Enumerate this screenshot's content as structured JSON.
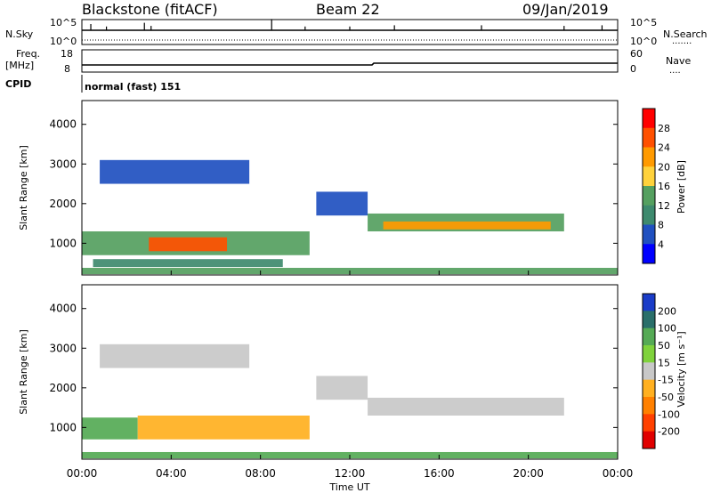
{
  "header": {
    "station": "Blackstone (fitACF)",
    "beam": "Beam 22",
    "date": "09/Jan/2019"
  },
  "status": {
    "nsky_label": "N.Sky",
    "nsearch_label": "N.Search",
    "nsearch_key": "·······",
    "freq_label_1": "Freq.",
    "freq_label_2": "[MHz]",
    "nave_label": "Nave",
    "nave_key": "····",
    "cpid_label": "CPID",
    "cpid_text": "normal (fast) 151",
    "noise_ticks_left": [
      "10^5",
      "10^0"
    ],
    "noise_ticks_right": [
      "10^5",
      "10^0"
    ],
    "freq_ticks": [
      "18",
      "8"
    ],
    "nave_ticks": [
      "60",
      "0"
    ]
  },
  "chart_data": [
    {
      "type": "heatmap",
      "name": "power",
      "ylabel": "Slant Range [km]",
      "ylim": [
        200,
        4600
      ],
      "yticks": [
        1000,
        2000,
        3000,
        4000
      ],
      "xlim_hours": [
        0,
        24
      ],
      "colorbar": {
        "label": "Power [dB]",
        "ticks": [
          4,
          8,
          12,
          16,
          20,
          24,
          28
        ],
        "colors": [
          "#0000ff",
          "#2050c0",
          "#3e8a6e",
          "#55a060",
          "#ffd23c",
          "#ff9a00",
          "#ff5000",
          "#ff0000"
        ]
      },
      "regions": [
        {
          "t0": 0.0,
          "t1": 10.2,
          "r0": 700,
          "r1": 1300,
          "level": 12
        },
        {
          "t0": 3.0,
          "t1": 6.5,
          "r0": 800,
          "r1": 1150,
          "level": 26
        },
        {
          "t0": 0.5,
          "t1": 9.0,
          "r0": 400,
          "r1": 600,
          "level": 10
        },
        {
          "t0": 12.8,
          "t1": 21.6,
          "r0": 1300,
          "r1": 1750,
          "level": 14
        },
        {
          "t0": 13.5,
          "t1": 21.0,
          "r0": 1350,
          "r1": 1550,
          "level": 22
        },
        {
          "t0": 0.8,
          "t1": 7.5,
          "r0": 2500,
          "r1": 3100,
          "level": 6
        },
        {
          "t0": 10.5,
          "t1": 12.8,
          "r0": 1700,
          "r1": 2300,
          "level": 6
        },
        {
          "t0": 0.0,
          "t1": 24.0,
          "r0": 220,
          "r1": 380,
          "level": 12
        }
      ]
    },
    {
      "type": "heatmap",
      "name": "velocity",
      "ylabel": "Slant Range [km]",
      "ylim": [
        200,
        4600
      ],
      "yticks": [
        1000,
        2000,
        3000,
        4000
      ],
      "xlim_hours": [
        0,
        24
      ],
      "colorbar": {
        "label": "Velocity [m s⁻¹]",
        "ticks": [
          "200",
          "100",
          "50",
          "15",
          "-15",
          "-50",
          "-100",
          "-200"
        ],
        "colors": [
          "#1a3cc8",
          "#2a6f6a",
          "#55aa55",
          "#7fd23c",
          "#c8c8c8",
          "#ffb020",
          "#ff8000",
          "#ff4000",
          "#e00000"
        ]
      },
      "regions": [
        {
          "t0": 0.0,
          "t1": 2.5,
          "r0": 700,
          "r1": 1250,
          "level": 40
        },
        {
          "t0": 2.5,
          "t1": 10.2,
          "r0": 700,
          "r1": 1300,
          "level": -30
        },
        {
          "t0": 12.8,
          "t1": 21.6,
          "r0": 1300,
          "r1": 1750,
          "level": 0
        },
        {
          "t0": 0.8,
          "t1": 7.5,
          "r0": 2500,
          "r1": 3100,
          "level": 0
        },
        {
          "t0": 10.5,
          "t1": 12.8,
          "r0": 1700,
          "r1": 2300,
          "level": 0
        },
        {
          "t0": 0.0,
          "t1": 24.0,
          "r0": 220,
          "r1": 380,
          "level": 40
        }
      ]
    }
  ],
  "xaxis": {
    "label": "Time UT",
    "ticks": [
      "00:00",
      "04:00",
      "08:00",
      "12:00",
      "16:00",
      "20:00",
      "00:00"
    ],
    "tick_hours": [
      0,
      4,
      8,
      12,
      16,
      20,
      24
    ]
  }
}
